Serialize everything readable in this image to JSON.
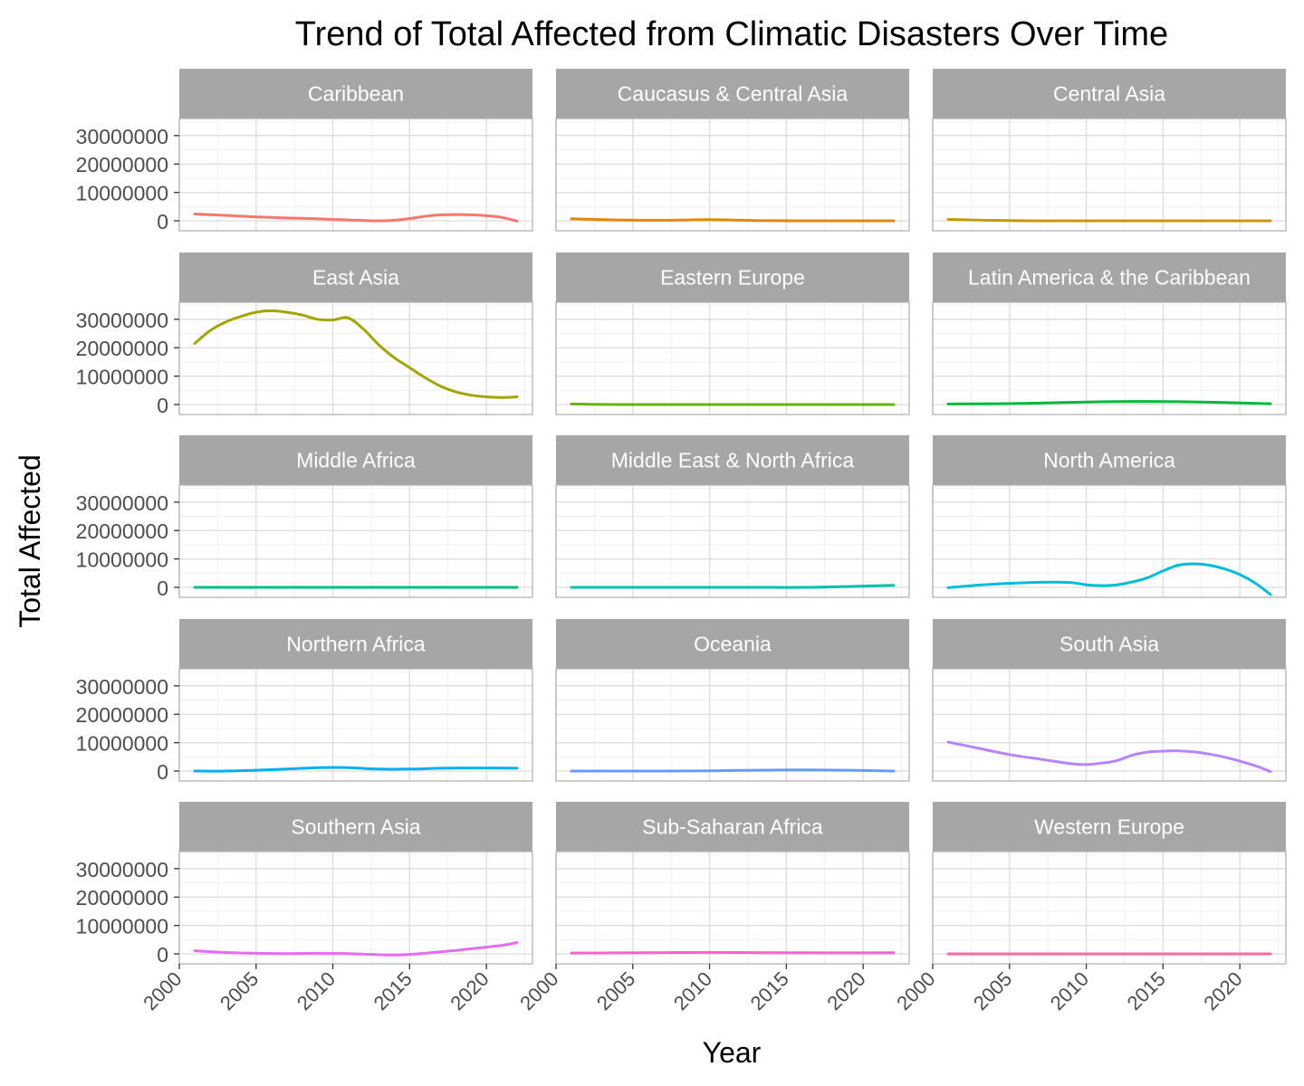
{
  "chart_data": {
    "type": "line",
    "title": "Trend of Total Affected from Climatic Disasters Over Time",
    "xlabel": "Year",
    "ylabel": "Total Affected",
    "xlim": [
      2000,
      2023
    ],
    "ylim": [
      -3500000,
      36000000
    ],
    "x_ticks": [
      "2000",
      "2005",
      "2010",
      "2015",
      "2020"
    ],
    "y_ticks": [
      "0",
      "10000000",
      "20000000",
      "30000000"
    ],
    "grid": true,
    "legend": "none",
    "panels": [
      {
        "name": "Caribbean",
        "color": "#F8766D",
        "x": [
          2001,
          2003,
          2005,
          2007,
          2009,
          2011,
          2013,
          2014,
          2015,
          2016,
          2017,
          2018,
          2019,
          2020,
          2021,
          2022
        ],
        "y": [
          2400000,
          1900000,
          1400000,
          1000000,
          700000,
          300000,
          0,
          200000,
          800000,
          1600000,
          2100000,
          2200000,
          2100000,
          1800000,
          1200000,
          -100000
        ]
      },
      {
        "name": "Caucasus & Central Asia",
        "color": "#E58700",
        "x": [
          2001,
          2004,
          2007,
          2010,
          2013,
          2016,
          2019,
          2022
        ],
        "y": [
          700000,
          300000,
          200000,
          400000,
          100000,
          0,
          0,
          0
        ]
      },
      {
        "name": "Central Asia",
        "color": "#C99800",
        "x": [
          2001,
          2004,
          2007,
          2010,
          2013,
          2016,
          2019,
          2022
        ],
        "y": [
          500000,
          150000,
          0,
          0,
          0,
          0,
          0,
          0
        ]
      },
      {
        "name": "East Asia",
        "color": "#A3A500",
        "x": [
          2001,
          2002,
          2003,
          2004,
          2005,
          2006,
          2007,
          2008,
          2009,
          2010,
          2011,
          2012,
          2013,
          2014,
          2015,
          2016,
          2017,
          2018,
          2019,
          2020,
          2021,
          2022
        ],
        "y": [
          21500000,
          26000000,
          29000000,
          31000000,
          32500000,
          33000000,
          32500000,
          31500000,
          30000000,
          29800000,
          30500000,
          26500000,
          21000000,
          16500000,
          13000000,
          9500000,
          6500000,
          4500000,
          3300000,
          2700000,
          2500000,
          2700000
        ]
      },
      {
        "name": "Eastern Europe",
        "color": "#6BB100",
        "x": [
          2001,
          2004,
          2007,
          2010,
          2013,
          2016,
          2019,
          2022
        ],
        "y": [
          200000,
          0,
          0,
          0,
          0,
          0,
          0,
          0
        ]
      },
      {
        "name": "Latin America & the Caribbean",
        "color": "#00BA38",
        "x": [
          2001,
          2004,
          2007,
          2010,
          2013,
          2016,
          2019,
          2022
        ],
        "y": [
          200000,
          300000,
          500000,
          900000,
          1100000,
          1000000,
          700000,
          300000
        ]
      },
      {
        "name": "Middle Africa",
        "color": "#00BF7D",
        "x": [
          2001,
          2004,
          2007,
          2010,
          2013,
          2016,
          2019,
          2022
        ],
        "y": [
          0,
          0,
          0,
          0,
          0,
          0,
          0,
          0
        ]
      },
      {
        "name": "Middle East & North Africa",
        "color": "#00C0AF",
        "x": [
          2001,
          2004,
          2007,
          2010,
          2013,
          2016,
          2019,
          2022
        ],
        "y": [
          0,
          0,
          0,
          0,
          0,
          0,
          300000,
          700000
        ]
      },
      {
        "name": "North America",
        "color": "#00BCD8",
        "x": [
          2001,
          2003,
          2005,
          2007,
          2009,
          2010,
          2011,
          2012,
          2013,
          2014,
          2015,
          2016,
          2017,
          2018,
          2019,
          2020,
          2021,
          2022
        ],
        "y": [
          -100000,
          800000,
          1400000,
          1800000,
          1700000,
          900000,
          600000,
          900000,
          1900000,
          3400000,
          5800000,
          7800000,
          8300000,
          7800000,
          6500000,
          4500000,
          1500000,
          -2500000
        ]
      },
      {
        "name": "Northern Africa",
        "color": "#00B0F6",
        "x": [
          2001,
          2003,
          2005,
          2007,
          2009,
          2011,
          2013,
          2015,
          2017,
          2019,
          2022
        ],
        "y": [
          0,
          0,
          300000,
          700000,
          1200000,
          1200000,
          700000,
          700000,
          1000000,
          1100000,
          1000000
        ]
      },
      {
        "name": "Oceania",
        "color": "#619CFF",
        "x": [
          2001,
          2004,
          2007,
          2010,
          2013,
          2016,
          2019,
          2022
        ],
        "y": [
          0,
          0,
          0,
          100000,
          300000,
          400000,
          300000,
          0
        ]
      },
      {
        "name": "South Asia",
        "color": "#B983FF",
        "x": [
          2001,
          2003,
          2005,
          2007,
          2009,
          2010,
          2011,
          2012,
          2013,
          2014,
          2015,
          2016,
          2017,
          2018,
          2019,
          2020,
          2021,
          2022
        ],
        "y": [
          10200000,
          8000000,
          5800000,
          4200000,
          2600000,
          2300000,
          2800000,
          3700000,
          5600000,
          6700000,
          7000000,
          7100000,
          6800000,
          6000000,
          4900000,
          3500000,
          1900000,
          -200000
        ]
      },
      {
        "name": "Southern Asia",
        "color": "#E76BF3",
        "x": [
          2001,
          2003,
          2005,
          2007,
          2009,
          2011,
          2013,
          2014,
          2015,
          2017,
          2019,
          2021,
          2022
        ],
        "y": [
          1100000,
          500000,
          200000,
          100000,
          200000,
          100000,
          -300000,
          -400000,
          -200000,
          700000,
          1800000,
          3000000,
          4000000
        ]
      },
      {
        "name": "Sub-Saharan Africa",
        "color": "#FD61D1",
        "x": [
          2001,
          2004,
          2007,
          2010,
          2013,
          2016,
          2019,
          2022
        ],
        "y": [
          300000,
          350000,
          450000,
          500000,
          450000,
          400000,
          350000,
          400000
        ]
      },
      {
        "name": "Western Europe",
        "color": "#FF67A4",
        "x": [
          2001,
          2004,
          2007,
          2010,
          2013,
          2016,
          2019,
          2022
        ],
        "y": [
          0,
          0,
          0,
          0,
          0,
          0,
          0,
          0
        ]
      }
    ]
  }
}
